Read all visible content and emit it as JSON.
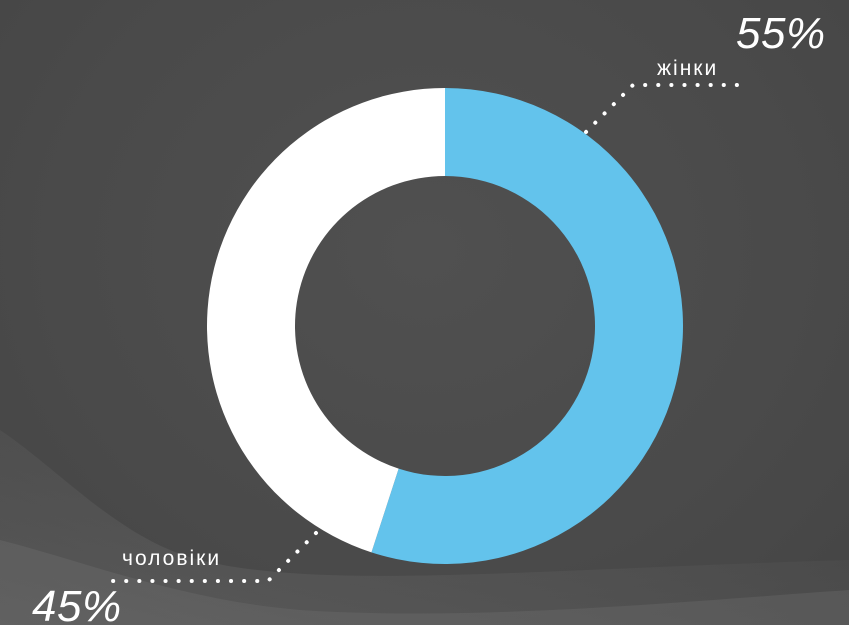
{
  "chart_data": {
    "type": "pie",
    "variant": "donut",
    "slices": [
      {
        "label": "жінки",
        "value": 55,
        "value_label": "55%",
        "color": "#63c3ec"
      },
      {
        "label": "чоловіки",
        "value": 45,
        "value_label": "45%",
        "color": "#ffffff"
      }
    ],
    "title": "",
    "legend": "none",
    "leader_line_style": "dotted"
  },
  "colors": {
    "background": "#4b4b4b",
    "accent": "#63c3ec",
    "secondary": "#ffffff"
  }
}
